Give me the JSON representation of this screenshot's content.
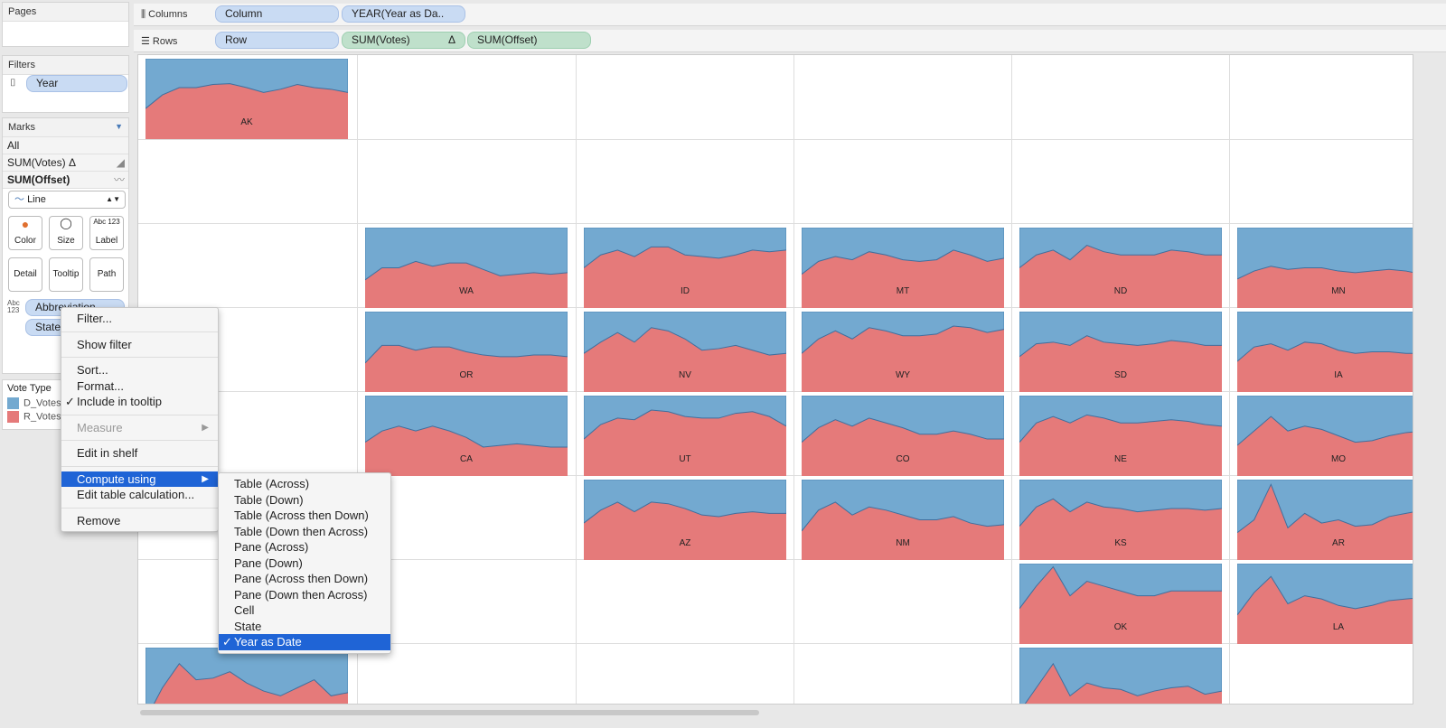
{
  "pages": {
    "title": "Pages"
  },
  "filters": {
    "title": "Filters",
    "items": [
      "Year"
    ]
  },
  "shelves": {
    "columns_label": "Columns",
    "columns": [
      "Column",
      "YEAR(Year as Da.."
    ],
    "rows_label": "Rows",
    "rows": [
      "Row",
      "SUM(Votes)",
      "SUM(Offset)"
    ],
    "delta": "Δ"
  },
  "marks": {
    "title": "Marks",
    "all": "All",
    "layers": [
      "SUM(Votes) Δ",
      "SUM(Offset)"
    ],
    "mark_type": "Line",
    "buttons": [
      "Color",
      "Size",
      "Label",
      "Detail",
      "Tooltip",
      "Path"
    ],
    "label_icon_text": "Abc 123",
    "fields": [
      "Abbreviation",
      "State"
    ]
  },
  "legend": {
    "title": "Vote Type",
    "items": [
      {
        "label": "D_Votes",
        "color": "#73a9d0"
      },
      {
        "label": "R_Votes",
        "color": "#e57a7a"
      }
    ]
  },
  "context_menu": {
    "items": [
      "Filter...",
      "Show filter",
      "Sort...",
      "Format...",
      "Include in tooltip",
      "Measure",
      "Edit in shelf",
      "Compute using",
      "Edit table calculation...",
      "Remove"
    ],
    "checked": "Include in tooltip",
    "disabled": "Measure",
    "highlighted": "Compute using"
  },
  "submenu": {
    "items": [
      "Table (Across)",
      "Table (Down)",
      "Table (Across then Down)",
      "Table (Down then Across)",
      "Pane (Across)",
      "Pane (Down)",
      "Pane (Across then Down)",
      "Pane (Down then Across)",
      "Cell",
      "State",
      "Year as Date"
    ],
    "selected": "Year as Date"
  },
  "chart_data": {
    "type": "area",
    "stacked": true,
    "normalized": true,
    "series_colors": {
      "D_Votes": "#73a9d0",
      "R_Votes": "#e57a7a"
    },
    "note_values": "R_Votes share per year (0-1), D_Votes fills remainder",
    "panels": [
      {
        "state": "AK",
        "row": 0,
        "col": 0,
        "r": [
          0.38,
          0.55,
          0.64,
          0.64,
          0.68,
          0.69,
          0.64,
          0.58,
          0.62,
          0.68,
          0.64,
          0.62,
          0.58
        ]
      },
      {
        "state": "WA",
        "row": 2,
        "col": 1,
        "r": [
          0.35,
          0.5,
          0.5,
          0.58,
          0.52,
          0.56,
          0.56,
          0.48,
          0.4,
          0.42,
          0.44,
          0.42,
          0.44
        ]
      },
      {
        "state": "ID",
        "row": 2,
        "col": 2,
        "r": [
          0.5,
          0.66,
          0.72,
          0.64,
          0.76,
          0.76,
          0.66,
          0.64,
          0.62,
          0.66,
          0.72,
          0.7,
          0.72
        ]
      },
      {
        "state": "MT",
        "row": 2,
        "col": 3,
        "r": [
          0.42,
          0.58,
          0.64,
          0.6,
          0.7,
          0.66,
          0.6,
          0.58,
          0.6,
          0.72,
          0.66,
          0.58,
          0.62
        ]
      },
      {
        "state": "ND",
        "row": 2,
        "col": 4,
        "r": [
          0.5,
          0.66,
          0.72,
          0.6,
          0.78,
          0.7,
          0.66,
          0.66,
          0.66,
          0.72,
          0.7,
          0.66,
          0.66
        ]
      },
      {
        "state": "MN",
        "row": 2,
        "col": 5,
        "r": [
          0.36,
          0.46,
          0.52,
          0.48,
          0.5,
          0.5,
          0.46,
          0.44,
          0.46,
          0.48,
          0.46,
          0.42,
          0.44
        ]
      },
      {
        "state": "OR",
        "row": 3,
        "col": 1,
        "r": [
          0.36,
          0.58,
          0.58,
          0.52,
          0.56,
          0.56,
          0.5,
          0.46,
          0.44,
          0.44,
          0.46,
          0.46,
          0.44
        ]
      },
      {
        "state": "NV",
        "row": 3,
        "col": 2,
        "r": [
          0.48,
          0.62,
          0.74,
          0.62,
          0.8,
          0.76,
          0.66,
          0.52,
          0.54,
          0.58,
          0.52,
          0.46,
          0.48
        ]
      },
      {
        "state": "WY",
        "row": 3,
        "col": 3,
        "r": [
          0.48,
          0.66,
          0.76,
          0.66,
          0.8,
          0.76,
          0.7,
          0.7,
          0.72,
          0.82,
          0.8,
          0.74,
          0.78
        ]
      },
      {
        "state": "SD",
        "row": 3,
        "col": 4,
        "r": [
          0.44,
          0.6,
          0.62,
          0.58,
          0.7,
          0.62,
          0.6,
          0.58,
          0.6,
          0.64,
          0.62,
          0.58,
          0.58
        ]
      },
      {
        "state": "IA",
        "row": 3,
        "col": 5,
        "r": [
          0.38,
          0.56,
          0.6,
          0.52,
          0.62,
          0.6,
          0.52,
          0.48,
          0.5,
          0.5,
          0.48,
          0.48,
          0.5
        ]
      },
      {
        "state": "CA",
        "row": 4,
        "col": 1,
        "r": [
          0.42,
          0.56,
          0.62,
          0.56,
          0.62,
          0.56,
          0.48,
          0.36,
          0.38,
          0.4,
          0.38,
          0.36,
          0.36
        ]
      },
      {
        "state": "UT",
        "row": 4,
        "col": 2,
        "r": [
          0.46,
          0.64,
          0.72,
          0.7,
          0.82,
          0.8,
          0.74,
          0.72,
          0.72,
          0.78,
          0.8,
          0.74,
          0.62
        ]
      },
      {
        "state": "CO",
        "row": 4,
        "col": 3,
        "r": [
          0.42,
          0.6,
          0.7,
          0.62,
          0.72,
          0.66,
          0.6,
          0.52,
          0.52,
          0.56,
          0.52,
          0.46,
          0.46
        ]
      },
      {
        "state": "NE",
        "row": 4,
        "col": 4,
        "r": [
          0.42,
          0.66,
          0.74,
          0.66,
          0.76,
          0.72,
          0.66,
          0.66,
          0.68,
          0.7,
          0.68,
          0.64,
          0.62
        ]
      },
      {
        "state": "MO",
        "row": 4,
        "col": 5,
        "r": [
          0.38,
          0.56,
          0.74,
          0.56,
          0.62,
          0.58,
          0.5,
          0.42,
          0.44,
          0.5,
          0.54,
          0.56,
          0.6
        ]
      },
      {
        "state": "AZ",
        "row": 5,
        "col": 2,
        "r": [
          0.46,
          0.62,
          0.72,
          0.6,
          0.72,
          0.7,
          0.64,
          0.56,
          0.54,
          0.58,
          0.6,
          0.58,
          0.58
        ]
      },
      {
        "state": "NM",
        "row": 5,
        "col": 3,
        "r": [
          0.36,
          0.62,
          0.72,
          0.56,
          0.66,
          0.62,
          0.56,
          0.5,
          0.5,
          0.54,
          0.46,
          0.42,
          0.44
        ]
      },
      {
        "state": "KS",
        "row": 5,
        "col": 4,
        "r": [
          0.42,
          0.66,
          0.76,
          0.6,
          0.72,
          0.66,
          0.64,
          0.6,
          0.62,
          0.64,
          0.64,
          0.62,
          0.64
        ]
      },
      {
        "state": "AR",
        "row": 5,
        "col": 5,
        "r": [
          0.34,
          0.5,
          0.94,
          0.4,
          0.58,
          0.46,
          0.5,
          0.42,
          0.44,
          0.54,
          0.58,
          0.62,
          0.64
        ]
      },
      {
        "state": "OK",
        "row": 6,
        "col": 4,
        "r": [
          0.44,
          0.72,
          0.96,
          0.6,
          0.78,
          0.72,
          0.66,
          0.6,
          0.6,
          0.66,
          0.66,
          0.66,
          0.66
        ]
      },
      {
        "state": "LA",
        "row": 6,
        "col": 5,
        "r": [
          0.36,
          0.64,
          0.84,
          0.5,
          0.6,
          0.56,
          0.48,
          0.44,
          0.48,
          0.54,
          0.56,
          0.58,
          0.6
        ]
      },
      {
        "state": "",
        "row": 7,
        "col": 0,
        "r": [
          0.1,
          0.5,
          0.8,
          0.6,
          0.62,
          0.7,
          0.56,
          0.46,
          0.4,
          0.5,
          0.6,
          0.4,
          0.44
        ]
      },
      {
        "state": "",
        "row": 7,
        "col": 4,
        "r": [
          0.2,
          0.5,
          0.8,
          0.4,
          0.56,
          0.5,
          0.48,
          0.4,
          0.46,
          0.5,
          0.52,
          0.42,
          0.46
        ]
      }
    ]
  }
}
